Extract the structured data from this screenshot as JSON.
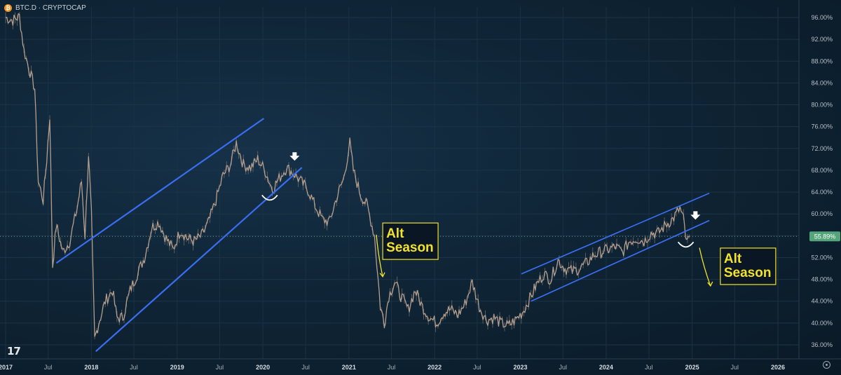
{
  "legend": {
    "coin_symbol": "₿",
    "title": "BTC.D · CRYPTOCAP"
  },
  "price_badge": "55.89%",
  "tv_logo": "17",
  "icons": {
    "settings": "gear-icon"
  },
  "colors": {
    "background": "#0f2133",
    "channel": "#3a6ef0",
    "annotation": "#f2e22b",
    "candles": "#b49e8e",
    "badge": "#54a57a"
  },
  "annotations": [
    {
      "lines": [
        "Alt",
        "Season"
      ],
      "date": "2021-05-25",
      "y": 55.0
    },
    {
      "lines": [
        "Alt",
        "Season"
      ],
      "date": "2025-05-01",
      "y": 50.4
    }
  ],
  "chart_data": {
    "type": "line",
    "symbol": "BTC.D",
    "exchange": "CRYPTOCAP",
    "x_axis": {
      "range": [
        "2017-01-01",
        "2026-06-01"
      ],
      "ticks": [
        {
          "label": "2017",
          "date": "2017-01-01",
          "bold": true
        },
        {
          "label": "Jul",
          "date": "2017-07-01"
        },
        {
          "label": "2018",
          "date": "2018-01-01",
          "bold": true
        },
        {
          "label": "Jul",
          "date": "2018-07-01"
        },
        {
          "label": "2019",
          "date": "2019-01-01",
          "bold": true
        },
        {
          "label": "Jul",
          "date": "2019-07-01"
        },
        {
          "label": "2020",
          "date": "2020-01-01",
          "bold": true
        },
        {
          "label": "Jul",
          "date": "2020-07-01"
        },
        {
          "label": "2021",
          "date": "2021-01-01",
          "bold": true
        },
        {
          "label": "Jul",
          "date": "2021-07-01"
        },
        {
          "label": "2022",
          "date": "2022-01-01",
          "bold": true
        },
        {
          "label": "Jul",
          "date": "2022-07-01"
        },
        {
          "label": "2023",
          "date": "2023-01-01",
          "bold": true
        },
        {
          "label": "Jul",
          "date": "2023-07-01"
        },
        {
          "label": "2024",
          "date": "2024-01-01",
          "bold": true
        },
        {
          "label": "Jul",
          "date": "2024-07-01"
        },
        {
          "label": "2025",
          "date": "2025-01-01",
          "bold": true
        },
        {
          "label": "Jul",
          "date": "2025-07-01"
        },
        {
          "label": "2026",
          "date": "2026-01-01",
          "bold": true
        }
      ]
    },
    "y_axis": {
      "unit": "%",
      "range": [
        34.0,
        97.5
      ],
      "ticks": [
        "96.00%",
        "92.00%",
        "88.00%",
        "84.00%",
        "80.00%",
        "76.00%",
        "72.00%",
        "68.00%",
        "64.00%",
        "60.00%",
        "56.00%",
        "52.00%",
        "48.00%",
        "44.00%",
        "40.00%",
        "36.00%"
      ],
      "tick_values": [
        96,
        92,
        88,
        84,
        80,
        76,
        72,
        68,
        64,
        60,
        56,
        52,
        48,
        44,
        40,
        36
      ]
    },
    "current_value": 55.89,
    "series": [
      {
        "values": [
          [
            "2017-01-01",
            96.0
          ],
          [
            "2017-02-01",
            95.5
          ],
          [
            "2017-03-01",
            96.2
          ],
          [
            "2017-03-20",
            90.0
          ],
          [
            "2017-04-15",
            86.0
          ],
          [
            "2017-05-05",
            83.0
          ],
          [
            "2017-05-20",
            66.0
          ],
          [
            "2017-06-10",
            62.5
          ],
          [
            "2017-06-25",
            70.0
          ],
          [
            "2017-07-08",
            78.0
          ],
          [
            "2017-07-20",
            50.5
          ],
          [
            "2017-08-05",
            58.0
          ],
          [
            "2017-09-01",
            53.0
          ],
          [
            "2017-10-01",
            55.0
          ],
          [
            "2017-11-01",
            61.0
          ],
          [
            "2017-11-20",
            66.0
          ],
          [
            "2017-12-05",
            56.0
          ],
          [
            "2017-12-20",
            71.0
          ],
          [
            "2018-01-01",
            60.0
          ],
          [
            "2018-01-15",
            37.0
          ],
          [
            "2018-02-01",
            40.0
          ],
          [
            "2018-03-01",
            44.0
          ],
          [
            "2018-04-01",
            46.0
          ],
          [
            "2018-04-20",
            41.0
          ],
          [
            "2018-05-15",
            41.0
          ],
          [
            "2018-06-15",
            46.0
          ],
          [
            "2018-07-15",
            49.0
          ],
          [
            "2018-08-15",
            52.0
          ],
          [
            "2018-09-15",
            57.5
          ],
          [
            "2018-10-15",
            58.5
          ],
          [
            "2018-11-15",
            55.5
          ],
          [
            "2018-12-15",
            53.5
          ],
          [
            "2019-01-15",
            57.0
          ],
          [
            "2019-02-15",
            55.5
          ],
          [
            "2019-03-15",
            55.0
          ],
          [
            "2019-04-15",
            56.0
          ],
          [
            "2019-05-15",
            58.5
          ],
          [
            "2019-06-15",
            62.5
          ],
          [
            "2019-07-15",
            67.0
          ],
          [
            "2019-08-15",
            69.0
          ],
          [
            "2019-09-10",
            73.0
          ],
          [
            "2019-10-10",
            69.0
          ],
          [
            "2019-11-10",
            68.5
          ],
          [
            "2019-12-10",
            70.0
          ],
          [
            "2020-01-10",
            68.0
          ],
          [
            "2020-02-10",
            64.5
          ],
          [
            "2020-03-10",
            66.5
          ],
          [
            "2020-04-10",
            68.5
          ],
          [
            "2020-05-10",
            67.5
          ],
          [
            "2020-06-10",
            66.0
          ],
          [
            "2020-07-10",
            64.5
          ],
          [
            "2020-08-10",
            61.5
          ],
          [
            "2020-09-10",
            59.0
          ],
          [
            "2020-10-10",
            58.5
          ],
          [
            "2020-11-10",
            63.0
          ],
          [
            "2020-12-10",
            66.5
          ],
          [
            "2021-01-05",
            73.0
          ],
          [
            "2021-01-20",
            68.0
          ],
          [
            "2021-02-20",
            63.5
          ],
          [
            "2021-03-20",
            61.5
          ],
          [
            "2021-04-20",
            56.0
          ],
          [
            "2021-05-15",
            43.0
          ],
          [
            "2021-06-01",
            40.0
          ],
          [
            "2021-06-20",
            45.0
          ],
          [
            "2021-07-15",
            47.5
          ],
          [
            "2021-08-10",
            45.0
          ],
          [
            "2021-09-10",
            42.5
          ],
          [
            "2021-10-10",
            46.0
          ],
          [
            "2021-11-10",
            43.0
          ],
          [
            "2021-12-10",
            41.0
          ],
          [
            "2022-01-10",
            40.0
          ],
          [
            "2022-02-10",
            42.0
          ],
          [
            "2022-03-10",
            42.5
          ],
          [
            "2022-04-10",
            41.5
          ],
          [
            "2022-05-10",
            43.5
          ],
          [
            "2022-06-10",
            47.5
          ],
          [
            "2022-07-10",
            43.0
          ],
          [
            "2022-08-10",
            40.5
          ],
          [
            "2022-09-10",
            41.0
          ],
          [
            "2022-10-10",
            40.0
          ],
          [
            "2022-11-10",
            39.5
          ],
          [
            "2022-12-10",
            40.5
          ],
          [
            "2023-01-10",
            42.0
          ],
          [
            "2023-02-10",
            44.5
          ],
          [
            "2023-03-10",
            47.0
          ],
          [
            "2023-04-10",
            49.0
          ],
          [
            "2023-05-10",
            48.0
          ],
          [
            "2023-06-10",
            51.5
          ],
          [
            "2023-07-10",
            50.0
          ],
          [
            "2023-08-10",
            49.5
          ],
          [
            "2023-09-10",
            50.0
          ],
          [
            "2023-10-10",
            51.0
          ],
          [
            "2023-11-10",
            52.5
          ],
          [
            "2023-12-10",
            53.0
          ],
          [
            "2024-01-10",
            53.5
          ],
          [
            "2024-02-10",
            54.0
          ],
          [
            "2024-03-10",
            53.0
          ],
          [
            "2024-04-10",
            55.0
          ],
          [
            "2024-05-10",
            55.5
          ],
          [
            "2024-06-10",
            55.0
          ],
          [
            "2024-07-10",
            56.5
          ],
          [
            "2024-08-10",
            56.5
          ],
          [
            "2024-09-10",
            58.0
          ],
          [
            "2024-10-10",
            59.0
          ],
          [
            "2024-11-10",
            61.0
          ],
          [
            "2024-11-25",
            59.0
          ],
          [
            "2024-12-08",
            54.5
          ],
          [
            "2024-12-20",
            55.89
          ]
        ]
      }
    ],
    "trendlines": [
      {
        "role": "upper",
        "from": [
          "2017-08-05",
          51.0
        ],
        "to": [
          "2020-01-05",
          77.5
        ]
      },
      {
        "role": "lower",
        "from": [
          "2018-01-20",
          34.8
        ],
        "to": [
          "2020-06-15",
          68.5
        ]
      },
      {
        "role": "upper",
        "from": [
          "2023-01-05",
          49.0
        ],
        "to": [
          "2025-03-15",
          63.8
        ]
      },
      {
        "role": "lower",
        "from": [
          "2023-02-15",
          44.0
        ],
        "to": [
          "2025-03-15",
          58.8
        ]
      }
    ],
    "markers": [
      {
        "type": "arrow-down",
        "date": "2020-05-15",
        "y": 70.4
      },
      {
        "type": "arc",
        "date": "2020-01-30",
        "y": 62.8
      },
      {
        "type": "arrow-down",
        "date": "2025-01-15",
        "y": 59.6
      },
      {
        "type": "arc",
        "date": "2024-12-05",
        "y": 54.2
      }
    ]
  }
}
